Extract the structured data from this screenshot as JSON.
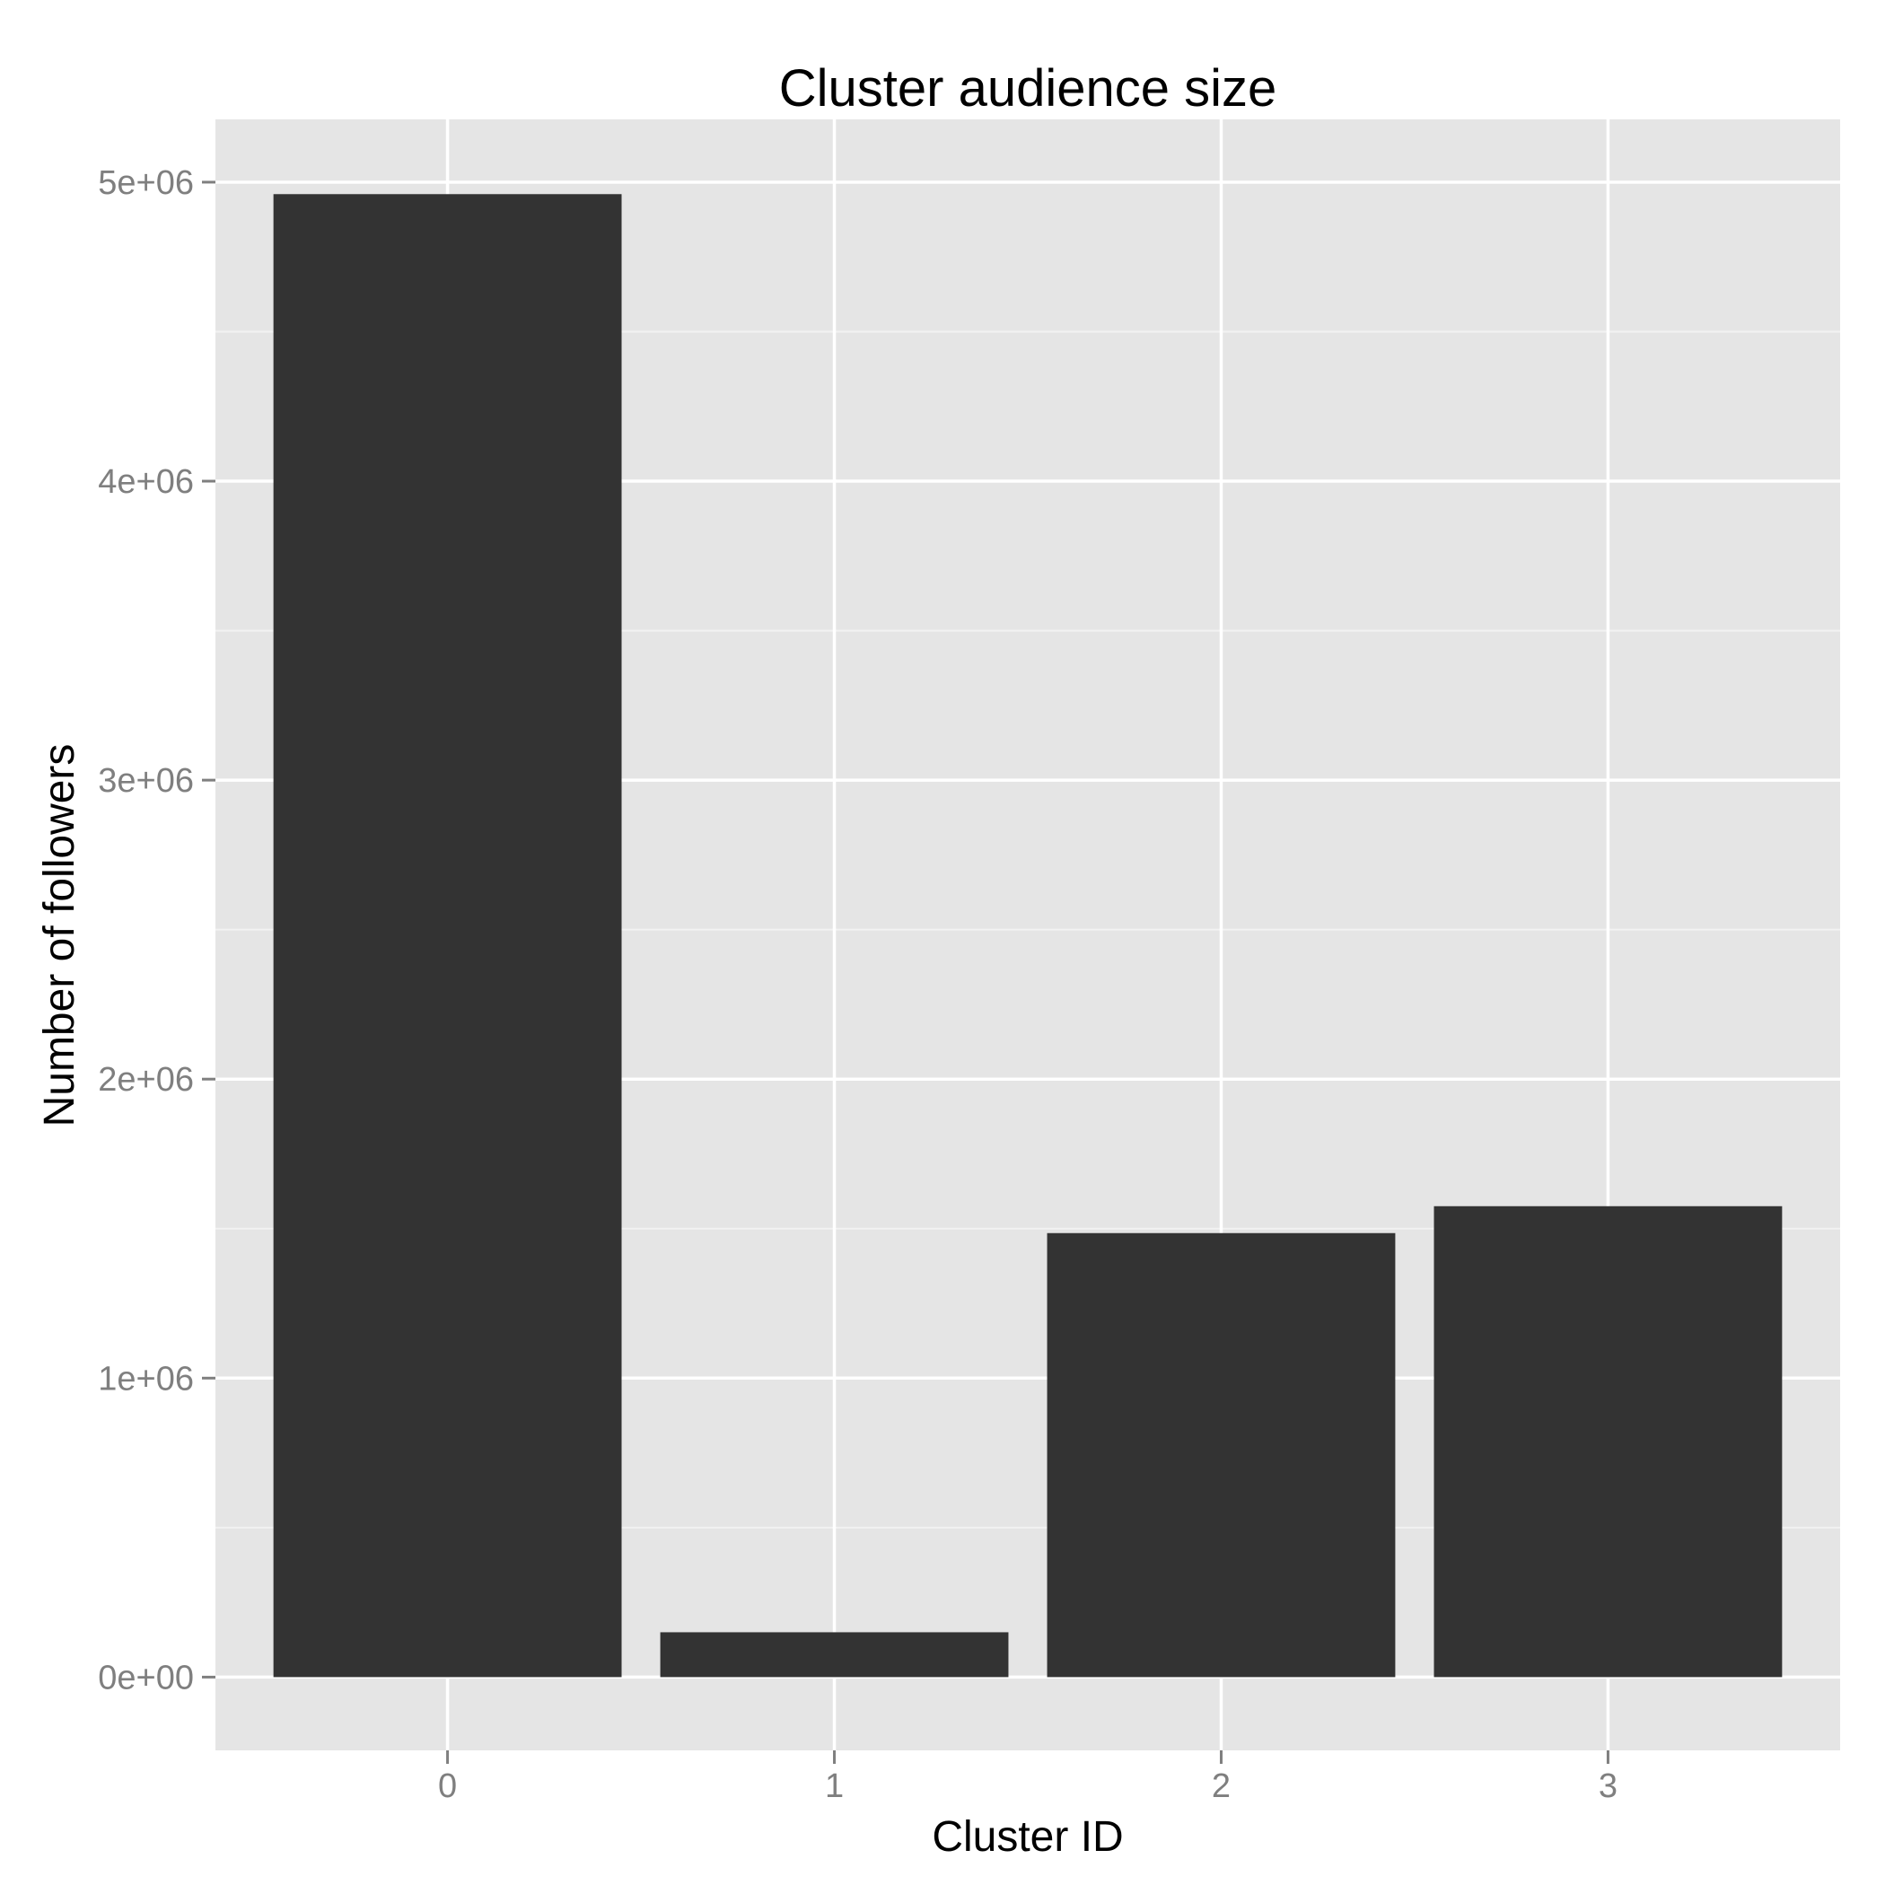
{
  "chart_data": {
    "type": "bar",
    "title": "Cluster audience size",
    "xlabel": "Cluster ID",
    "ylabel": "Number of followers",
    "categories": [
      "0",
      "1",
      "2",
      "3"
    ],
    "values": [
      4960000,
      150000,
      1485000,
      1575000
    ],
    "ylim": [
      -245000,
      5210000
    ],
    "yticks": [
      0,
      1000000,
      2000000,
      3000000,
      4000000,
      5000000
    ],
    "ytick_labels": [
      "0e+00",
      "1e+06",
      "2e+06",
      "3e+06",
      "4e+06",
      "5e+06"
    ],
    "grid": true,
    "legend": "none",
    "colors": {
      "bar": "#333333",
      "panel_background": "#e5e5e5",
      "grid_major": "#ffffff",
      "grid_minor": "#f2f2f2",
      "tick_label": "#7f7f7f",
      "tick_mark": "#7f7f7f"
    }
  }
}
